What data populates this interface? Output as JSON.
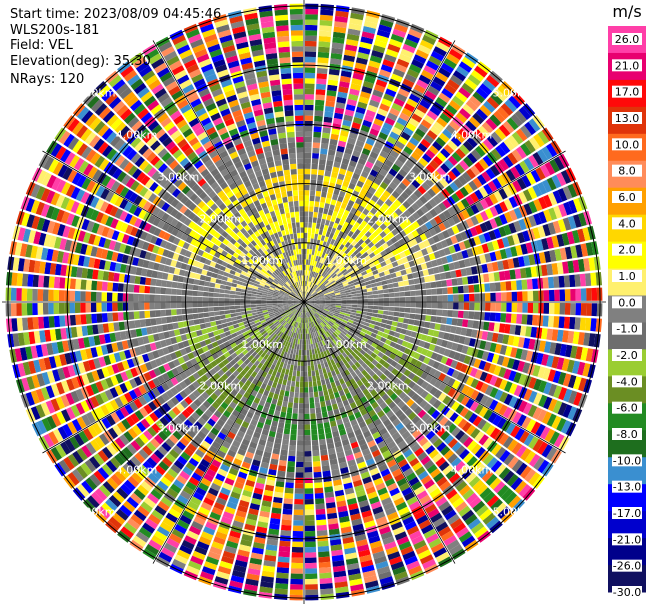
{
  "header": {
    "start_time": "Start time: 2023/08/09 04:45:46",
    "instrument": "WLS200s-181",
    "field": "Field: VEL",
    "elevation": "Elevation(deg): 35.30",
    "nrays": "NRays: 120"
  },
  "chart_data": {
    "type": "heatmap",
    "projection": "polar (PPI)",
    "field": "VEL",
    "units": "m/s",
    "nrays": 120,
    "range_rings_km": [
      1.0,
      2.0,
      3.0,
      4.0,
      5.0
    ],
    "ring_labels": [
      "1.00km",
      "2.00km",
      "3.00km",
      "4.00km",
      "5.00km"
    ],
    "colorbar": {
      "unit_label": "m/s",
      "ticks": [
        "26.0",
        "21.0",
        "17.0",
        "13.0",
        "10.0",
        "8.0",
        "6.0",
        "4.0",
        "2.0",
        "1.0",
        "0.0",
        "-1.0",
        "-2.0",
        "-4.0",
        "-6.0",
        "-8.0",
        "-10.0",
        "-13.0",
        "-17.0",
        "-21.0",
        "-26.0",
        "-30.0"
      ],
      "colors": [
        "#ff3fa8",
        "#e8006f",
        "#ff0a0a",
        "#e0340a",
        "#ff6a1e",
        "#ff8c5a",
        "#ffa000",
        "#ffd700",
        "#ffff00",
        "#fff06e",
        "#808080",
        "#6e6e6e",
        "#9acd32",
        "#6b8e23",
        "#228b22",
        "#1e6e1e",
        "#3a8fd0",
        "#0000ff",
        "#0000cd",
        "#00008b",
        "#101060"
      ],
      "range": [
        -30.0,
        30.0
      ]
    },
    "visible_features": "positive velocities (yellow/orange) toward north, negative velocities (green) toward south within ~2 km; noisy multicolour returns beyond ~3 km"
  },
  "colors": {
    "background": "#ffffff",
    "grid": "#000000",
    "ring_label": "#ffffff"
  }
}
